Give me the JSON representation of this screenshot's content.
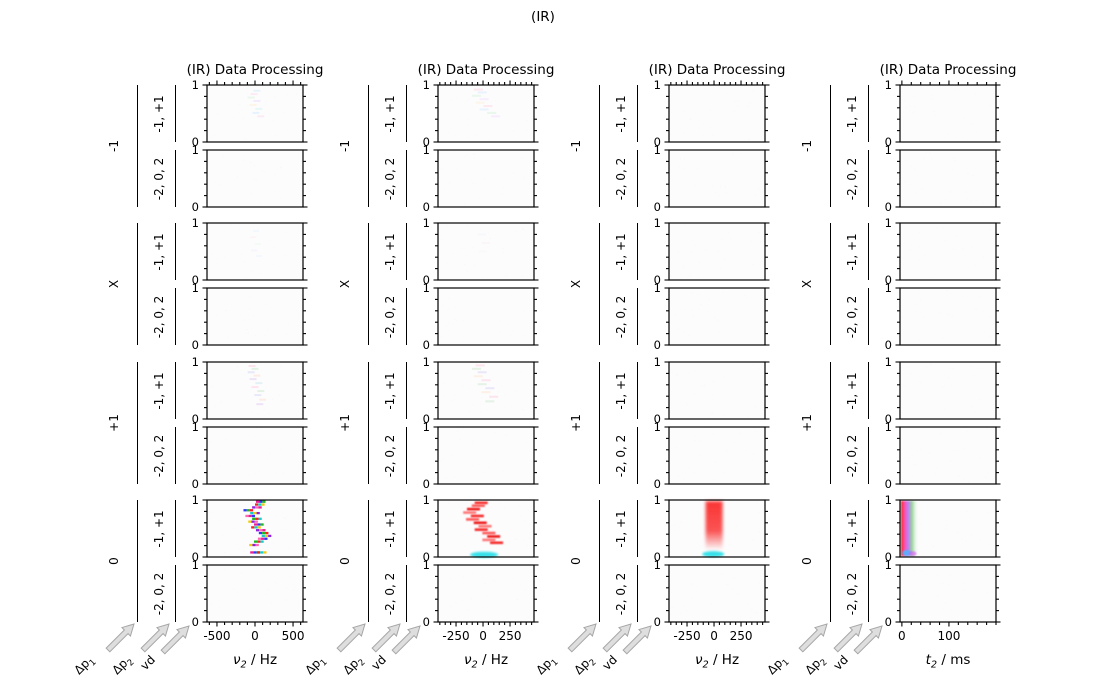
{
  "suptitle": "(IR)",
  "arrow_labels": [
    {
      "sym": "Δp",
      "sub": "1"
    },
    {
      "sym": "Δp",
      "sub": "2"
    },
    {
      "sym": "vd",
      "sub": ""
    }
  ],
  "chart_data": {
    "type": "heatmap",
    "layout_hint": "4 columns of processing stages; each column has 4 experiment groups (rows) x 2 coherence-pathway sub-panels; grid off; ticks outside",
    "grid": {
      "groups": [
        "-1",
        "X",
        "+1",
        "0"
      ],
      "coherence_rows": [
        "-1, +1",
        "-2, 0, 2"
      ],
      "ylim": [
        0,
        1
      ],
      "ytick_labels": [
        "1",
        "0"
      ],
      "yminor_step": 0.2
    },
    "columns": [
      {
        "title": "(IR) Data Processing",
        "xlabel": {
          "sym": "ν",
          "sub": "2",
          "unit": " / Hz"
        },
        "xlim": [
          -631,
          631
        ],
        "xminor_step": 100,
        "xticks": [
          {
            "v": -500,
            "label": "-500"
          },
          {
            "v": 0,
            "label": "0"
          },
          {
            "v": 500,
            "label": "500"
          }
        ],
        "panels": [
          {
            "group": "-1",
            "coherence": "-1, +1",
            "features": [
              {
                "t": "zig",
                "w": 7,
                "h": 2,
                "op": 0.22,
                "palette": [
                  "#9ad4ff",
                  "#ffb0d8",
                  "#b0e8b0",
                  "#d8b0ff",
                  "#ffe0a0",
                  "#a0e8e0"
                ],
                "pts": [
                  [
                    0.52,
                    0.1
                  ],
                  [
                    0.49,
                    0.16
                  ],
                  [
                    0.46,
                    0.22
                  ],
                  [
                    0.52,
                    0.28
                  ],
                  [
                    0.48,
                    0.35
                  ],
                  [
                    0.54,
                    0.42
                  ],
                  [
                    0.51,
                    0.49
                  ],
                  [
                    0.56,
                    0.55
                  ]
                ]
              }
            ]
          },
          {
            "group": "-1",
            "coherence": "-2, 0, 2",
            "features": []
          },
          {
            "group": "X",
            "coherence": "-1, +1",
            "features": [
              {
                "t": "zig",
                "w": 6,
                "h": 2,
                "op": 0.1,
                "palette": [
                  "#9ad4ff",
                  "#ffb0d8",
                  "#b0e8b0",
                  "#d8b0ff"
                ],
                "pts": [
                  [
                    0.51,
                    0.14
                  ],
                  [
                    0.48,
                    0.25
                  ],
                  [
                    0.53,
                    0.37
                  ],
                  [
                    0.49,
                    0.48
                  ],
                  [
                    0.54,
                    0.58
                  ]
                ]
              }
            ]
          },
          {
            "group": "X",
            "coherence": "-2, 0, 2",
            "features": []
          },
          {
            "group": "+1",
            "coherence": "-1, +1",
            "features": [
              {
                "t": "zig",
                "w": 7,
                "h": 2,
                "op": 0.3,
                "palette": [
                  "#ffa8cc",
                  "#a8dca8",
                  "#b8b8f0",
                  "#ffc8a8",
                  "#cca8e8",
                  "#a8d8e8"
                ],
                "pts": [
                  [
                    0.47,
                    0.07
                  ],
                  [
                    0.5,
                    0.12
                  ],
                  [
                    0.46,
                    0.18
                  ],
                  [
                    0.52,
                    0.24
                  ],
                  [
                    0.48,
                    0.3
                  ],
                  [
                    0.54,
                    0.37
                  ],
                  [
                    0.5,
                    0.44
                  ],
                  [
                    0.56,
                    0.51
                  ],
                  [
                    0.53,
                    0.58
                  ],
                  [
                    0.58,
                    0.66
                  ],
                  [
                    0.55,
                    0.74
                  ]
                ]
              }
            ]
          },
          {
            "group": "+1",
            "coherence": "-2, 0, 2",
            "features": []
          },
          {
            "group": "0",
            "coherence": "-1, +1",
            "features": [
              {
                "t": "zig",
                "w": 3.2,
                "h": 2.3,
                "op": 0.95,
                "triple": true,
                "palette": [
                  "#e8148c",
                  "#2828ff",
                  "#10b410",
                  "#ff1414",
                  "#08c8c8",
                  "#f0c800",
                  "#8c14dc",
                  "#ff60b0"
                ],
                "pts": [
                  [
                    0.56,
                    0.03
                  ],
                  [
                    0.55,
                    0.08
                  ],
                  [
                    0.52,
                    0.13
                  ],
                  [
                    0.43,
                    0.18
                  ],
                  [
                    0.5,
                    0.23
                  ],
                  [
                    0.45,
                    0.28
                  ],
                  [
                    0.52,
                    0.33
                  ],
                  [
                    0.48,
                    0.38
                  ],
                  [
                    0.54,
                    0.43
                  ],
                  [
                    0.51,
                    0.48
                  ],
                  [
                    0.56,
                    0.53
                  ],
                  [
                    0.59,
                    0.58
                  ],
                  [
                    0.62,
                    0.63
                  ],
                  [
                    0.58,
                    0.68
                  ],
                  [
                    0.54,
                    0.73
                  ],
                  [
                    0.49,
                    0.79
                  ],
                  [
                    0.5,
                    0.92
                  ],
                  [
                    0.57,
                    0.92
                  ]
                ]
              }
            ]
          },
          {
            "group": "0",
            "coherence": "-2, 0, 2",
            "features": []
          }
        ]
      },
      {
        "title": "(IR) Data Processing",
        "xlabel": {
          "sym": "ν",
          "sub": "2",
          "unit": " / Hz"
        },
        "xlim": [
          -417,
          472
        ],
        "xminor_step": 50,
        "xticks": [
          {
            "v": -250,
            "label": "-250"
          },
          {
            "v": 0,
            "label": "0"
          },
          {
            "v": 250,
            "label": "250"
          }
        ],
        "panels": [
          {
            "group": "-1",
            "coherence": "-1, +1",
            "features": [
              {
                "t": "zig",
                "w": 9,
                "h": 2,
                "op": 0.25,
                "palette": [
                  "#ffb0c8",
                  "#b0d8ff",
                  "#b0e8c0",
                  "#e8c0ff",
                  "#ffe0b0"
                ],
                "pts": [
                  [
                    0.42,
                    0.08
                  ],
                  [
                    0.46,
                    0.13
                  ],
                  [
                    0.4,
                    0.19
                  ],
                  [
                    0.48,
                    0.25
                  ],
                  [
                    0.44,
                    0.31
                  ],
                  [
                    0.52,
                    0.37
                  ],
                  [
                    0.48,
                    0.43
                  ],
                  [
                    0.56,
                    0.49
                  ],
                  [
                    0.6,
                    0.55
                  ]
                ]
              }
            ]
          },
          {
            "group": "-1",
            "coherence": "-2, 0, 2",
            "features": []
          },
          {
            "group": "X",
            "coherence": "-1, +1",
            "features": [
              {
                "t": "zig",
                "w": 8,
                "h": 2,
                "op": 0.08,
                "palette": [
                  "#b0c8e8",
                  "#e8b0c8",
                  "#c0e0b0"
                ],
                "pts": [
                  [
                    0.46,
                    0.2
                  ],
                  [
                    0.5,
                    0.35
                  ],
                  [
                    0.47,
                    0.5
                  ]
                ]
              }
            ]
          },
          {
            "group": "X",
            "coherence": "-2, 0, 2",
            "features": []
          },
          {
            "group": "+1",
            "coherence": "-1, +1",
            "features": [
              {
                "t": "zig",
                "w": 9,
                "h": 2,
                "op": 0.28,
                "palette": [
                  "#ffa8c8",
                  "#a8d8a8",
                  "#c0b0ec",
                  "#ffd0a8"
                ],
                "pts": [
                  [
                    0.44,
                    0.06
                  ],
                  [
                    0.4,
                    0.12
                  ],
                  [
                    0.46,
                    0.18
                  ],
                  [
                    0.42,
                    0.25
                  ],
                  [
                    0.5,
                    0.32
                  ],
                  [
                    0.46,
                    0.39
                  ],
                  [
                    0.54,
                    0.46
                  ],
                  [
                    0.5,
                    0.53
                  ],
                  [
                    0.58,
                    0.61
                  ],
                  [
                    0.54,
                    0.69
                  ]
                ]
              }
            ]
          },
          {
            "group": "+1",
            "coherence": "-2, 0, 2",
            "features": []
          },
          {
            "group": "0",
            "coherence": "-1, +1",
            "features": [
              {
                "t": "zig",
                "w": 13,
                "h": 2.6,
                "op": 0.9,
                "blur": 0.7,
                "palette": [
                  "#f51414",
                  "#ff4848",
                  "#eb0000",
                  "#ff6868"
                ],
                "pts": [
                  [
                    0.45,
                    0.05
                  ],
                  [
                    0.42,
                    0.1
                  ],
                  [
                    0.37,
                    0.16
                  ],
                  [
                    0.33,
                    0.22
                  ],
                  [
                    0.41,
                    0.28
                  ],
                  [
                    0.36,
                    0.34
                  ],
                  [
                    0.44,
                    0.4
                  ],
                  [
                    0.49,
                    0.46
                  ],
                  [
                    0.45,
                    0.52
                  ],
                  [
                    0.53,
                    0.58
                  ],
                  [
                    0.58,
                    0.64
                  ],
                  [
                    0.53,
                    0.7
                  ],
                  [
                    0.61,
                    0.75
                  ]
                ]
              },
              {
                "t": "blob",
                "x": 0.48,
                "y": 0.96,
                "w": 28,
                "h": 6,
                "c": "#14dce6",
                "op": 0.85,
                "blur": 1
              }
            ]
          },
          {
            "group": "0",
            "coherence": "-2, 0, 2",
            "features": []
          }
        ]
      },
      {
        "title": "(IR) Data Processing",
        "xlabel": {
          "sym": "ν",
          "sub": "2",
          "unit": " / Hz"
        },
        "xlim": [
          -417,
          472
        ],
        "xminor_step": 50,
        "xticks": [
          {
            "v": -250,
            "label": "-250"
          },
          {
            "v": 0,
            "label": "0"
          },
          {
            "v": 250,
            "label": "250"
          }
        ],
        "panels": [
          {
            "group": "-1",
            "coherence": "-1, +1",
            "features": []
          },
          {
            "group": "-1",
            "coherence": "-2, 0, 2",
            "features": []
          },
          {
            "group": "X",
            "coherence": "-1, +1",
            "features": []
          },
          {
            "group": "X",
            "coherence": "-2, 0, 2",
            "features": []
          },
          {
            "group": "+1",
            "coherence": "-1, +1",
            "features": []
          },
          {
            "group": "+1",
            "coherence": "-2, 0, 2",
            "features": []
          },
          {
            "group": "0",
            "coherence": "-1, +1",
            "features": [
              {
                "t": "band",
                "x": 0.47,
                "w": 17,
                "y0": 0.02,
                "y1": 0.88,
                "c": "#fa1e1e",
                "op": 0.9,
                "blur": 1.6
              },
              {
                "t": "blob",
                "x": 0.46,
                "y": 0.95,
                "w": 22,
                "h": 6,
                "c": "#14dce6",
                "op": 0.85,
                "blur": 1
              }
            ]
          },
          {
            "group": "0",
            "coherence": "-2, 0, 2",
            "features": []
          }
        ]
      },
      {
        "title": "(IR) Data Processing",
        "xlabel": {
          "sym": "t",
          "sub": "2",
          "unit": " / ms"
        },
        "xlim": [
          -4,
          200
        ],
        "xminor_step": 20,
        "xticks": [
          {
            "v": 0,
            "label": "0"
          },
          {
            "v": 100,
            "label": "100"
          }
        ],
        "panels": [
          {
            "group": "-1",
            "coherence": "-1, +1",
            "features": []
          },
          {
            "group": "-1",
            "coherence": "-2, 0, 2",
            "features": []
          },
          {
            "group": "X",
            "coherence": "-1, +1",
            "features": []
          },
          {
            "group": "X",
            "coherence": "-2, 0, 2",
            "features": []
          },
          {
            "group": "+1",
            "coherence": "-1, +1",
            "features": []
          },
          {
            "group": "+1",
            "coherence": "-2, 0, 2",
            "features": []
          },
          {
            "group": "0",
            "coherence": "-1, +1",
            "features": [
              {
                "t": "stripe",
                "x0": 1,
                "x1": 20,
                "blur": 0.7,
                "stops": [
                  [
                    0.0,
                    "#ff1414",
                    0.95
                  ],
                  [
                    0.18,
                    "#ff3c9c",
                    0.9
                  ],
                  [
                    0.38,
                    "#aa55ff",
                    0.75
                  ],
                  [
                    0.58,
                    "#55bb55",
                    0.6
                  ],
                  [
                    0.92,
                    "#ffffff",
                    0
                  ]
                ]
              },
              {
                "t": "blob",
                "x": 0.07,
                "y": 0.93,
                "w": 9,
                "h": 6,
                "c": "#50b4ff",
                "op": 0.9,
                "blur": 0.8
              },
              {
                "t": "blob",
                "x": 0.13,
                "y": 0.94,
                "w": 8,
                "h": 5,
                "c": "#e050ff",
                "op": 0.6,
                "blur": 0.8
              }
            ]
          },
          {
            "group": "0",
            "coherence": "-2, 0, 2",
            "features": []
          }
        ]
      }
    ]
  }
}
